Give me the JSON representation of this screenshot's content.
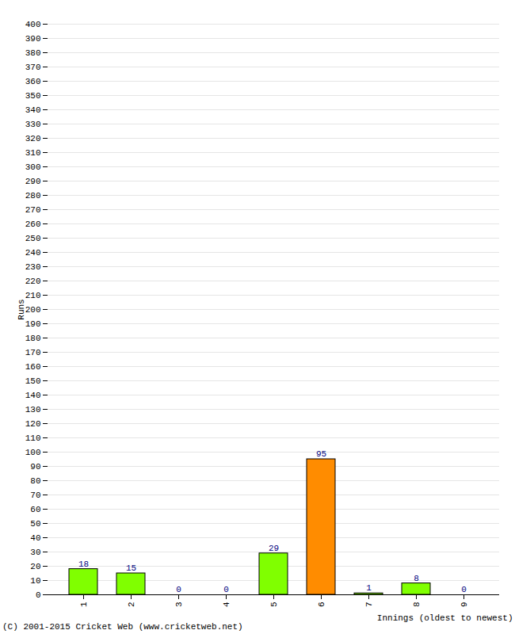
{
  "chart_data": {
    "type": "bar",
    "x_label": "Innings (oldest to newest)",
    "y_label": "Runs",
    "caption": "(C) 2001-2015 Cricket Web (www.cricketweb.net)",
    "categories": [
      "1",
      "2",
      "3",
      "4",
      "5",
      "6",
      "7",
      "8",
      "9"
    ],
    "values": [
      18,
      15,
      0,
      0,
      29,
      95,
      1,
      8,
      0
    ],
    "colors": [
      "#80ff00",
      "#80ff00",
      "#80ff00",
      "#80ff00",
      "#80ff00",
      "#ff8c00",
      "#80ff00",
      "#80ff00",
      "#80ff00"
    ],
    "ylim": [
      0,
      400
    ],
    "yticks": [
      0,
      10,
      20,
      30,
      40,
      50,
      60,
      70,
      80,
      90,
      100,
      110,
      120,
      130,
      140,
      150,
      160,
      170,
      180,
      190,
      200,
      210,
      220,
      230,
      240,
      250,
      260,
      270,
      280,
      290,
      300,
      310,
      320,
      330,
      340,
      350,
      360,
      370,
      380,
      390,
      400
    ],
    "grid": true,
    "data_labels": true
  }
}
